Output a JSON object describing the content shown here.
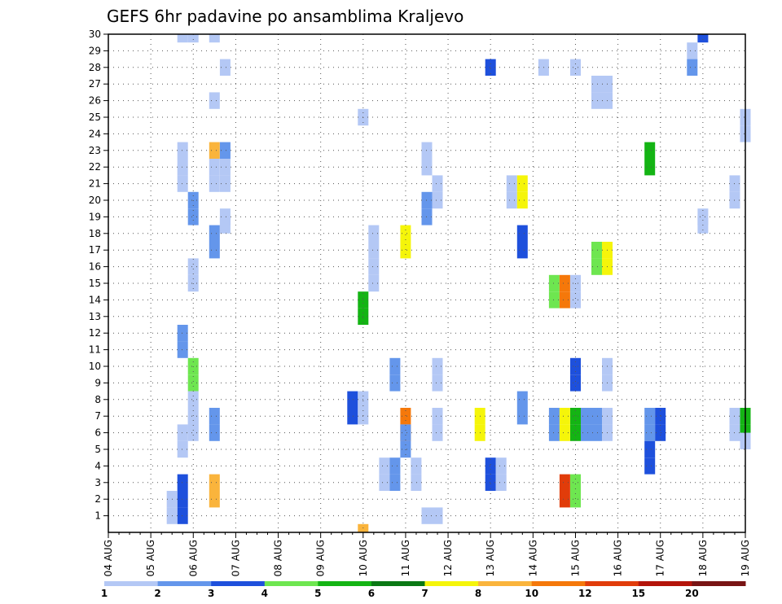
{
  "chart_data": {
    "type": "heatmap",
    "title": "GEFS 6hr padavine po ansamblima Kraljevo",
    "xlabel": "",
    "ylabel": "",
    "x_ticks": [
      "04 AUG",
      "05 AUG",
      "06 AUG",
      "07 AUG",
      "08 AUG",
      "09 AUG",
      "10 AUG",
      "11 AUG",
      "12 AUG",
      "13 AUG",
      "14 AUG",
      "15 AUG",
      "16 AUG",
      "17 AUG",
      "18 AUG",
      "19 AUG"
    ],
    "y_ticks": [
      "1",
      "2",
      "3",
      "4",
      "5",
      "6",
      "7",
      "8",
      "9",
      "10",
      "11",
      "12",
      "13",
      "14",
      "15",
      "16",
      "17",
      "18",
      "19",
      "20",
      "21",
      "22",
      "23",
      "24",
      "25",
      "26",
      "27",
      "28",
      "29",
      "30"
    ],
    "x_range_days": [
      0,
      15
    ],
    "y_range": [
      0,
      30
    ],
    "grid": true,
    "colorbar": {
      "boundaries": [
        "1",
        "2",
        "3",
        "4",
        "5",
        "6",
        "7",
        "8",
        "10",
        "12",
        "15",
        "20"
      ],
      "colors": [
        "#b4c8f5",
        "#6496eb",
        "#1e50dc",
        "#6ee650",
        "#14b414",
        "#0a7814",
        "#f5f50a",
        "#fab43c",
        "#f5780a",
        "#e13c0a",
        "#b4140a",
        "#781414"
      ]
    },
    "cells": [
      {
        "t": 1.75,
        "m": 30,
        "c": 0
      },
      {
        "t": 2.0,
        "m": 30,
        "c": 0
      },
      {
        "t": 2.5,
        "m": 30,
        "c": 0
      },
      {
        "t": 14.0,
        "m": 30,
        "c": 2
      },
      {
        "t": 13.75,
        "m": 29,
        "c": 0
      },
      {
        "t": 2.75,
        "m": 28,
        "c": 0
      },
      {
        "t": 9.0,
        "m": 28,
        "c": 2
      },
      {
        "t": 10.25,
        "m": 28,
        "c": 0
      },
      {
        "t": 11.0,
        "m": 28,
        "c": 0
      },
      {
        "t": 13.75,
        "m": 28,
        "c": 1
      },
      {
        "t": 11.5,
        "m": 27,
        "c": 0
      },
      {
        "t": 11.75,
        "m": 27,
        "c": 0
      },
      {
        "t": 2.5,
        "m": 26,
        "c": 0
      },
      {
        "t": 11.5,
        "m": 26,
        "c": 0
      },
      {
        "t": 11.75,
        "m": 26,
        "c": 0
      },
      {
        "t": 6.0,
        "m": 25,
        "c": 0
      },
      {
        "t": 15.0,
        "m": 25,
        "c": 0
      },
      {
        "t": 15.0,
        "m": 24,
        "c": 0
      },
      {
        "t": 1.75,
        "m": 23,
        "c": 0
      },
      {
        "t": 2.5,
        "m": 23,
        "c": 7
      },
      {
        "t": 2.75,
        "m": 23,
        "c": 1
      },
      {
        "t": 7.5,
        "m": 23,
        "c": 0
      },
      {
        "t": 12.75,
        "m": 23,
        "c": 4
      },
      {
        "t": 1.75,
        "m": 22,
        "c": 0
      },
      {
        "t": 2.5,
        "m": 22,
        "c": 0
      },
      {
        "t": 2.75,
        "m": 22,
        "c": 0
      },
      {
        "t": 7.5,
        "m": 22,
        "c": 0
      },
      {
        "t": 12.75,
        "m": 22,
        "c": 4
      },
      {
        "t": 1.75,
        "m": 21,
        "c": 0
      },
      {
        "t": 2.5,
        "m": 21,
        "c": 0
      },
      {
        "t": 2.75,
        "m": 21,
        "c": 0
      },
      {
        "t": 7.75,
        "m": 21,
        "c": 0
      },
      {
        "t": 9.5,
        "m": 21,
        "c": 0
      },
      {
        "t": 9.75,
        "m": 21,
        "c": 6
      },
      {
        "t": 14.75,
        "m": 21,
        "c": 0
      },
      {
        "t": 7.75,
        "m": 20,
        "c": 0
      },
      {
        "t": 9.5,
        "m": 20,
        "c": 0
      },
      {
        "t": 9.75,
        "m": 20,
        "c": 6
      },
      {
        "t": 14.75,
        "m": 20,
        "c": 0
      },
      {
        "t": 2.0,
        "m": 20,
        "c": 1
      },
      {
        "t": 7.5,
        "m": 20,
        "c": 1
      },
      {
        "t": 2.0,
        "m": 19,
        "c": 1
      },
      {
        "t": 7.5,
        "m": 19,
        "c": 1
      },
      {
        "t": 2.75,
        "m": 19,
        "c": 0
      },
      {
        "t": 14.0,
        "m": 19,
        "c": 0
      },
      {
        "t": 2.75,
        "m": 18.5,
        "c": 0
      },
      {
        "t": 14.0,
        "m": 18.5,
        "c": 0
      },
      {
        "t": 2.5,
        "m": 18,
        "c": 1
      },
      {
        "t": 6.25,
        "m": 18,
        "c": 0
      },
      {
        "t": 7.0,
        "m": 18,
        "c": 6
      },
      {
        "t": 9.75,
        "m": 18,
        "c": 2
      },
      {
        "t": 2.5,
        "m": 17,
        "c": 1
      },
      {
        "t": 6.25,
        "m": 17,
        "c": 0
      },
      {
        "t": 7.0,
        "m": 17,
        "c": 6
      },
      {
        "t": 9.75,
        "m": 17,
        "c": 2
      },
      {
        "t": 11.5,
        "m": 17,
        "c": 3
      },
      {
        "t": 11.75,
        "m": 17,
        "c": 6
      },
      {
        "t": 11.5,
        "m": 16,
        "c": 3
      },
      {
        "t": 11.75,
        "m": 16,
        "c": 6
      },
      {
        "t": 2.0,
        "m": 16,
        "c": 0
      },
      {
        "t": 6.25,
        "m": 16,
        "c": 0
      },
      {
        "t": 2.0,
        "m": 15,
        "c": 0
      },
      {
        "t": 6.25,
        "m": 15,
        "c": 0
      },
      {
        "t": 10.5,
        "m": 15,
        "c": 3
      },
      {
        "t": 10.75,
        "m": 15,
        "c": 8
      },
      {
        "t": 11.0,
        "m": 15,
        "c": 0
      },
      {
        "t": 10.5,
        "m": 14,
        "c": 3
      },
      {
        "t": 10.75,
        "m": 14,
        "c": 8
      },
      {
        "t": 11.0,
        "m": 14,
        "c": 0
      },
      {
        "t": 6.0,
        "m": 14,
        "c": 4
      },
      {
        "t": 6.0,
        "m": 13,
        "c": 4
      },
      {
        "t": 1.75,
        "m": 12,
        "c": 1
      },
      {
        "t": 1.75,
        "m": 11,
        "c": 1
      },
      {
        "t": 2.0,
        "m": 10,
        "c": 3
      },
      {
        "t": 6.75,
        "m": 10,
        "c": 1
      },
      {
        "t": 7.75,
        "m": 10,
        "c": 0
      },
      {
        "t": 11.0,
        "m": 10,
        "c": 2
      },
      {
        "t": 11.75,
        "m": 10,
        "c": 0
      },
      {
        "t": 2.0,
        "m": 9,
        "c": 3
      },
      {
        "t": 6.75,
        "m": 9,
        "c": 1
      },
      {
        "t": 7.75,
        "m": 9,
        "c": 0
      },
      {
        "t": 11.0,
        "m": 9,
        "c": 2
      },
      {
        "t": 11.75,
        "m": 9,
        "c": 0
      },
      {
        "t": 2.0,
        "m": 8,
        "c": 0
      },
      {
        "t": 5.75,
        "m": 8,
        "c": 2
      },
      {
        "t": 6.0,
        "m": 8,
        "c": 0
      },
      {
        "t": 9.75,
        "m": 8,
        "c": 1
      },
      {
        "t": 2.0,
        "m": 7,
        "c": 0
      },
      {
        "t": 5.75,
        "m": 7,
        "c": 2
      },
      {
        "t": 6.0,
        "m": 7,
        "c": 0
      },
      {
        "t": 9.75,
        "m": 7,
        "c": 1
      },
      {
        "t": 2.0,
        "m": 6.5,
        "c": 0
      },
      {
        "t": 2.5,
        "m": 7,
        "c": 1
      },
      {
        "t": 7.0,
        "m": 7,
        "c": 8
      },
      {
        "t": 7.75,
        "m": 7,
        "c": 0
      },
      {
        "t": 8.75,
        "m": 7,
        "c": 6
      },
      {
        "t": 10.5,
        "m": 7,
        "c": 1
      },
      {
        "t": 10.75,
        "m": 7,
        "c": 6
      },
      {
        "t": 11.0,
        "m": 7,
        "c": 4
      },
      {
        "t": 11.25,
        "m": 7,
        "c": 1
      },
      {
        "t": 11.5,
        "m": 7,
        "c": 1
      },
      {
        "t": 11.75,
        "m": 7,
        "c": 0
      },
      {
        "t": 12.75,
        "m": 7,
        "c": 1
      },
      {
        "t": 13.0,
        "m": 7,
        "c": 2
      },
      {
        "t": 14.75,
        "m": 7,
        "c": 0
      },
      {
        "t": 15.0,
        "m": 7,
        "c": 4
      },
      {
        "t": 2.5,
        "m": 6,
        "c": 1
      },
      {
        "t": 7.0,
        "m": 6,
        "c": 8
      },
      {
        "t": 7.75,
        "m": 6,
        "c": 0
      },
      {
        "t": 8.75,
        "m": 6,
        "c": 6
      },
      {
        "t": 10.5,
        "m": 6,
        "c": 1
      },
      {
        "t": 10.75,
        "m": 6,
        "c": 6
      },
      {
        "t": 11.0,
        "m": 6,
        "c": 4
      },
      {
        "t": 11.25,
        "m": 6,
        "c": 1
      },
      {
        "t": 11.5,
        "m": 6,
        "c": 1
      },
      {
        "t": 11.75,
        "m": 6,
        "c": 0
      },
      {
        "t": 12.75,
        "m": 6,
        "c": 1
      },
      {
        "t": 13.0,
        "m": 6,
        "c": 2
      },
      {
        "t": 14.75,
        "m": 6,
        "c": 0
      },
      {
        "t": 15.0,
        "m": 6,
        "c": 4
      },
      {
        "t": 1.75,
        "m": 6,
        "c": 0
      },
      {
        "t": 2.0,
        "m": 6,
        "c": 0
      },
      {
        "t": 7.0,
        "m": 6,
        "c": 1
      },
      {
        "t": 15.0,
        "m": 5.5,
        "c": 0
      },
      {
        "t": 1.75,
        "m": 5,
        "c": 0
      },
      {
        "t": 7.0,
        "m": 5,
        "c": 1
      },
      {
        "t": 12.75,
        "m": 5,
        "c": 2
      },
      {
        "t": 12.75,
        "m": 4,
        "c": 2
      },
      {
        "t": 6.5,
        "m": 4,
        "c": 0
      },
      {
        "t": 6.75,
        "m": 4,
        "c": 1
      },
      {
        "t": 7.25,
        "m": 4,
        "c": 0
      },
      {
        "t": 9.0,
        "m": 4,
        "c": 2
      },
      {
        "t": 9.25,
        "m": 4,
        "c": 0
      },
      {
        "t": 6.5,
        "m": 3,
        "c": 0
      },
      {
        "t": 6.75,
        "m": 3,
        "c": 1
      },
      {
        "t": 7.25,
        "m": 3,
        "c": 0
      },
      {
        "t": 9.0,
        "m": 3,
        "c": 2
      },
      {
        "t": 9.25,
        "m": 3,
        "c": 0
      },
      {
        "t": 1.75,
        "m": 3,
        "c": 2
      },
      {
        "t": 2.5,
        "m": 3,
        "c": 7
      },
      {
        "t": 10.75,
        "m": 3,
        "c": 9
      },
      {
        "t": 11.0,
        "m": 3,
        "c": 3
      },
      {
        "t": 1.75,
        "m": 2,
        "c": 2
      },
      {
        "t": 2.5,
        "m": 2,
        "c": 7
      },
      {
        "t": 10.75,
        "m": 2,
        "c": 9
      },
      {
        "t": 11.0,
        "m": 2,
        "c": 3
      },
      {
        "t": 1.5,
        "m": 2,
        "c": 0
      },
      {
        "t": 1.75,
        "m": 1,
        "c": 2
      },
      {
        "t": 1.5,
        "m": 1,
        "c": 0
      },
      {
        "t": 7.5,
        "m": 1,
        "c": 0
      },
      {
        "t": 7.75,
        "m": 1,
        "c": 0
      },
      {
        "t": 6.0,
        "m": 0,
        "c": 7
      }
    ]
  }
}
